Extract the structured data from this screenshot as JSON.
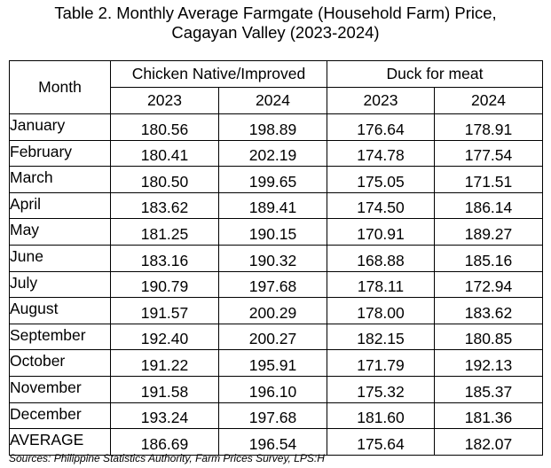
{
  "title": {
    "line1": "Table 2. Monthly Average Farmgate (Household Farm) Price,",
    "line2": "Cagayan Valley (2023-2024)"
  },
  "table": {
    "month_header": "Month",
    "groups": [
      "Chicken Native/Improved",
      "Duck for meat"
    ],
    "years": [
      "2023",
      "2024",
      "2023",
      "2024"
    ],
    "rows": [
      {
        "month": "January",
        "values": [
          "180.56",
          "198.89",
          "176.64",
          "178.91"
        ]
      },
      {
        "month": "February",
        "values": [
          "180.41",
          "202.19",
          "174.78",
          "177.54"
        ]
      },
      {
        "month": "March",
        "values": [
          "180.50",
          "199.65",
          "175.05",
          "171.51"
        ]
      },
      {
        "month": "April",
        "values": [
          "183.62",
          "189.41",
          "174.50",
          "186.14"
        ]
      },
      {
        "month": "May",
        "values": [
          "181.25",
          "190.15",
          "170.91",
          "189.27"
        ]
      },
      {
        "month": "June",
        "values": [
          "183.16",
          "190.32",
          "168.88",
          "185.16"
        ]
      },
      {
        "month": "July",
        "values": [
          "190.79",
          "197.68",
          "178.11",
          "172.94"
        ]
      },
      {
        "month": "August",
        "values": [
          "191.57",
          "200.29",
          "178.00",
          "183.62"
        ]
      },
      {
        "month": "September",
        "values": [
          "192.40",
          "200.27",
          "182.15",
          "180.85"
        ]
      },
      {
        "month": "October",
        "values": [
          "191.22",
          "195.91",
          "171.79",
          "192.13"
        ]
      },
      {
        "month": "November",
        "values": [
          "191.58",
          "196.10",
          "175.32",
          "185.37"
        ]
      },
      {
        "month": "December",
        "values": [
          "193.24",
          "197.68",
          "181.60",
          "181.36"
        ]
      },
      {
        "month": "AVERAGE",
        "values": [
          "186.69",
          "196.54",
          "175.64",
          "182.07"
        ]
      }
    ]
  },
  "source": "Sources: Philippine Statistics Authority, Farm Prices Survey, LPS:H"
}
